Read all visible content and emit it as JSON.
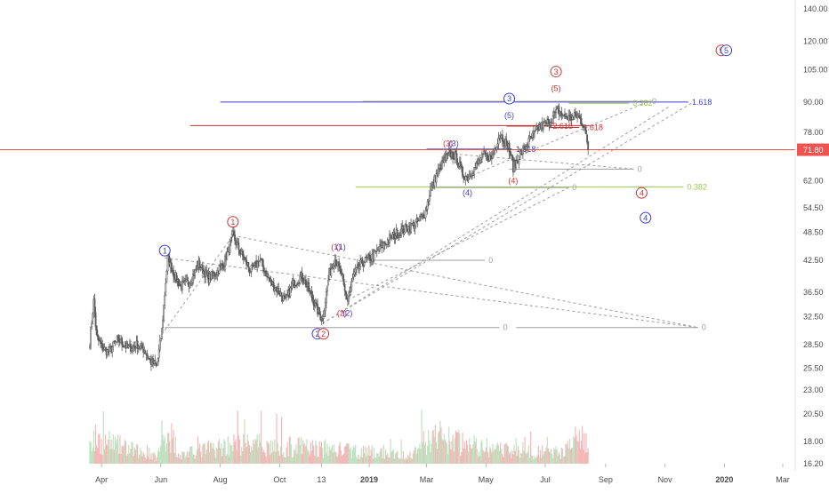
{
  "chart_data": {
    "type": "candlestick",
    "scale": "log",
    "ylim": [
      16.2,
      140.0
    ],
    "y_ticks": [
      "140.00",
      "120.00",
      "105.00",
      "90.00",
      "78.00",
      "62.00",
      "54.50",
      "48.50",
      "42.50",
      "36.50",
      "32.50",
      "28.50",
      "25.50",
      "23.00",
      "20.50",
      "18.00",
      "16.20"
    ],
    "x_ticks": [
      "Apr",
      "Jun",
      "Aug",
      "Oct",
      "13",
      "2019",
      "Mar",
      "May",
      "Jul",
      "Sep",
      "Nov",
      "2020",
      "Mar"
    ],
    "bold_x_ticks": [
      "2019",
      "2020"
    ],
    "last_price": "71.80",
    "price_path": [
      [
        "2018-03-20",
        29.0
      ],
      [
        "2018-03-24",
        35.0
      ],
      [
        "2018-03-27",
        29.5
      ],
      [
        "2018-04-01",
        28.2
      ],
      [
        "2018-04-08",
        27.5
      ],
      [
        "2018-04-18",
        29.2
      ],
      [
        "2018-04-28",
        28.0
      ],
      [
        "2018-05-08",
        28.5
      ],
      [
        "2018-05-15",
        27.8
      ],
      [
        "2018-05-22",
        26.2
      ],
      [
        "2018-05-28",
        25.8
      ],
      [
        "2018-06-02",
        30.5
      ],
      [
        "2018-06-08",
        43.0
      ],
      [
        "2018-06-14",
        40.0
      ],
      [
        "2018-06-21",
        37.5
      ],
      [
        "2018-07-01",
        38.5
      ],
      [
        "2018-07-10",
        41.8
      ],
      [
        "2018-07-20",
        39.0
      ],
      [
        "2018-07-27",
        40.0
      ],
      [
        "2018-08-05",
        42.0
      ],
      [
        "2018-08-14",
        47.8
      ],
      [
        "2018-08-22",
        44.0
      ],
      [
        "2018-09-01",
        40.5
      ],
      [
        "2018-09-11",
        42.5
      ],
      [
        "2018-09-21",
        38.5
      ],
      [
        "2018-10-01",
        36.5
      ],
      [
        "2018-10-07",
        35.0
      ],
      [
        "2018-10-15",
        38.0
      ],
      [
        "2018-10-24",
        39.5
      ],
      [
        "2018-11-02",
        36.2
      ],
      [
        "2018-11-08",
        33.8
      ],
      [
        "2018-11-14",
        32.0
      ],
      [
        "2018-11-21",
        40.0
      ],
      [
        "2018-11-27",
        42.8
      ],
      [
        "2018-12-03",
        40.0
      ],
      [
        "2018-12-07",
        36.5
      ],
      [
        "2018-12-10",
        35.2
      ],
      [
        "2018-12-16",
        39.5
      ],
      [
        "2018-12-24",
        42.0
      ],
      [
        "2019-01-03",
        43.0
      ],
      [
        "2019-01-14",
        45.5
      ],
      [
        "2019-01-24",
        47.5
      ],
      [
        "2019-02-04",
        49.0
      ],
      [
        "2019-02-18",
        50.5
      ],
      [
        "2019-02-28",
        53.5
      ],
      [
        "2019-03-04",
        58.5
      ],
      [
        "2019-03-10",
        63.0
      ],
      [
        "2019-03-17",
        67.0
      ],
      [
        "2019-03-24",
        70.5
      ],
      [
        "2019-03-31",
        69.5
      ],
      [
        "2019-04-07",
        64.0
      ],
      [
        "2019-04-12",
        63.0
      ],
      [
        "2019-04-20",
        66.0
      ],
      [
        "2019-04-29",
        70.0
      ],
      [
        "2019-05-07",
        69.0
      ],
      [
        "2019-05-15",
        77.5
      ],
      [
        "2019-05-24",
        73.0
      ],
      [
        "2019-05-29",
        66.0
      ],
      [
        "2019-06-05",
        70.0
      ],
      [
        "2019-06-15",
        75.0
      ],
      [
        "2019-06-25",
        80.0
      ],
      [
        "2019-07-05",
        82.0
      ],
      [
        "2019-07-14",
        86.5
      ],
      [
        "2019-07-20",
        84.0
      ],
      [
        "2019-07-27",
        83.5
      ],
      [
        "2019-08-03",
        84.5
      ],
      [
        "2019-08-10",
        80.5
      ],
      [
        "2019-08-14",
        71.8
      ]
    ],
    "volume_ylim": [
      0,
      100
    ],
    "volume_profile": [
      [
        "2018-03-20",
        60
      ],
      [
        "2018-05-28",
        15
      ],
      [
        "2018-06-08",
        80
      ],
      [
        "2018-06-21",
        20
      ],
      [
        "2018-08-14",
        45
      ],
      [
        "2018-11-14",
        35
      ],
      [
        "2018-12-10",
        30
      ],
      [
        "2019-02-04",
        20
      ],
      [
        "2019-03-10",
        60
      ],
      [
        "2019-05-15",
        30
      ],
      [
        "2019-07-14",
        25
      ],
      [
        "2019-08-14",
        60
      ]
    ],
    "fib_levels": [
      {
        "label": "1.618",
        "price": 90.0,
        "x_from": "2018-08-01",
        "x_to": "2019-11-25",
        "color": "#3d3dcc"
      },
      {
        "label": "0.382",
        "price": 89.5,
        "x_from": "2019-07-25",
        "x_to": "2019-09-25",
        "color": "#9bcb4a"
      },
      {
        "label": "0",
        "price": 90.3,
        "x_from": "2018-12-25",
        "x_to": "2019-10-15",
        "color": "#9e9e9e"
      },
      {
        "label": "",
        "price": 80.5,
        "x_from": "2018-07-01",
        "x_to": "2019-08-20",
        "color": "#cc3333"
      },
      {
        "label": "1.618",
        "price": 72.0,
        "x_from": "2019-03-01",
        "x_to": "2019-05-28",
        "color": "#3d3dcc"
      },
      {
        "label": "2.618",
        "price": 80.3,
        "x_from": "2019-05-22",
        "x_to": "2019-07-05",
        "color": "#cc3333"
      },
      {
        "label": "1.618",
        "price": 79.8,
        "x_from": "2019-07-05",
        "x_to": "2019-08-05",
        "color": "#cc3333"
      },
      {
        "label": "0",
        "price": 65.5,
        "x_from": "2019-05-25",
        "x_to": "2019-09-30",
        "color": "#9e9e9e"
      },
      {
        "label": "0.382",
        "price": 60.2,
        "x_from": "2018-12-18",
        "x_to": "2019-11-20",
        "color": "#9bcb4a"
      },
      {
        "label": "0",
        "price": 60.0,
        "x_from": "2019-03-05",
        "x_to": "2019-07-25",
        "color": "#9e9e9e"
      },
      {
        "label": "0",
        "price": 42.5,
        "x_from": "2018-12-27",
        "x_to": "2019-04-30",
        "color": "#9e9e9e"
      },
      {
        "label": "0",
        "price": 30.9,
        "x_from": "2018-06-05",
        "x_to": "2019-05-15",
        "color": "#9e9e9e"
      },
      {
        "label": "0",
        "price": 30.9,
        "x_from": "2019-06-01",
        "x_to": "2019-12-05",
        "color": "#9e9e9e"
      }
    ],
    "dashed_trendlines": [
      [
        [
          "2018-06-05",
          30.5
        ],
        [
          "2018-08-14",
          47.8
        ]
      ],
      [
        [
          "2018-08-14",
          47.8
        ],
        [
          "2019-12-05",
          30.9
        ]
      ],
      [
        [
          "2018-06-05",
          43.0
        ],
        [
          "2019-12-05",
          30.9
        ]
      ],
      [
        [
          "2018-11-14",
          31.5
        ],
        [
          "2019-11-05",
          88.0
        ]
      ],
      [
        [
          "2018-11-14",
          31.5
        ],
        [
          "2019-12-01",
          90.2
        ]
      ],
      [
        [
          "2018-12-10",
          35.2
        ],
        [
          "2019-07-25",
          60.0
        ]
      ],
      [
        [
          "2019-03-24",
          70.5
        ],
        [
          "2019-09-30",
          65.5
        ]
      ],
      [
        [
          "2019-04-12",
          63.0
        ],
        [
          "2019-10-15",
          90.3
        ]
      ]
    ],
    "wave_labels": [
      {
        "text": "1",
        "date": "2018-06-05",
        "price": 44.5,
        "color": "#3d3dcc",
        "circle": true
      },
      {
        "text": "1",
        "date": "2018-08-14",
        "price": 51.0,
        "color": "#cc3333",
        "circle": true
      },
      {
        "text": "2",
        "date": "2018-11-09",
        "price": 30.0,
        "color": "#3d3dcc",
        "circle": true
      },
      {
        "text": "2",
        "date": "2018-11-15",
        "price": 30.0,
        "color": "#cc3333",
        "circle": true
      },
      {
        "text": "(1)",
        "date": "2018-11-28",
        "price": 45.3,
        "color": "#cc3333",
        "circle": false
      },
      {
        "text": "(1)",
        "date": "2018-12-03",
        "price": 45.3,
        "color": "#3d3dcc",
        "circle": false
      },
      {
        "text": "(2)",
        "date": "2018-12-04",
        "price": 33.1,
        "color": "#cc3333",
        "circle": false
      },
      {
        "text": "(2)",
        "date": "2018-12-10",
        "price": 33.1,
        "color": "#3d3dcc",
        "circle": false
      },
      {
        "text": "(3)",
        "date": "2019-03-23",
        "price": 74.0,
        "color": "#cc3333",
        "circle": false
      },
      {
        "text": "(3)",
        "date": "2019-03-29",
        "price": 74.0,
        "color": "#3d3dcc",
        "circle": false
      },
      {
        "text": "(4)",
        "date": "2019-04-12",
        "price": 58.5,
        "color": "#3d3dcc",
        "circle": false
      },
      {
        "text": "(4)",
        "date": "2019-05-29",
        "price": 62.0,
        "color": "#cc3333",
        "circle": false
      },
      {
        "text": "3",
        "date": "2019-05-25",
        "price": 91.5,
        "color": "#3d3dcc",
        "circle": true
      },
      {
        "text": "(5)",
        "date": "2019-05-25",
        "price": 84.5,
        "color": "#3d3dcc",
        "circle": false
      },
      {
        "text": "3",
        "date": "2019-07-12",
        "price": 104.0,
        "color": "#cc3333",
        "circle": true
      },
      {
        "text": "(5)",
        "date": "2019-07-12",
        "price": 96.0,
        "color": "#cc3333",
        "circle": false
      },
      {
        "text": "4",
        "date": "2019-10-08",
        "price": 58.5,
        "color": "#cc3333",
        "circle": true
      },
      {
        "text": "4",
        "date": "2019-10-12",
        "price": 52.0,
        "color": "#3d3dcc",
        "circle": true
      },
      {
        "text": "5",
        "date": "2019-12-29",
        "price": 115.0,
        "color": "#cc3333",
        "circle": true
      },
      {
        "text": "5",
        "date": "2020-01-03",
        "price": 115.0,
        "color": "#3d3dcc",
        "circle": true
      }
    ],
    "colors": {
      "up": "#26a69a",
      "down": "#ef5350",
      "candle": "#5a5a5a",
      "vol_up": "#a5d6a7",
      "vol_down": "#ef9a9a",
      "axis_text": "#4a4a4a",
      "price_line": "#ef5350",
      "badge_bg": "#ef5350"
    }
  }
}
